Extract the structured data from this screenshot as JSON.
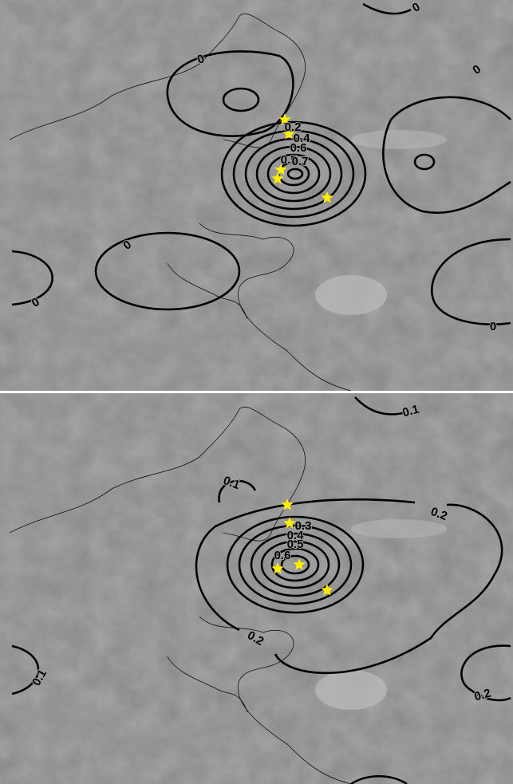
{
  "panels": [
    {
      "contour_labels": [
        "0",
        "0",
        "0",
        "0.2",
        "0.4",
        "0.6",
        "0.5",
        "0.7",
        "0",
        "0",
        "0"
      ]
    },
    {
      "contour_labels": [
        "0.1",
        "0.1",
        "0.2",
        "0.3",
        "0.4",
        "0.5",
        "0.6",
        "0.2",
        "0.1",
        "0.2"
      ]
    }
  ]
}
